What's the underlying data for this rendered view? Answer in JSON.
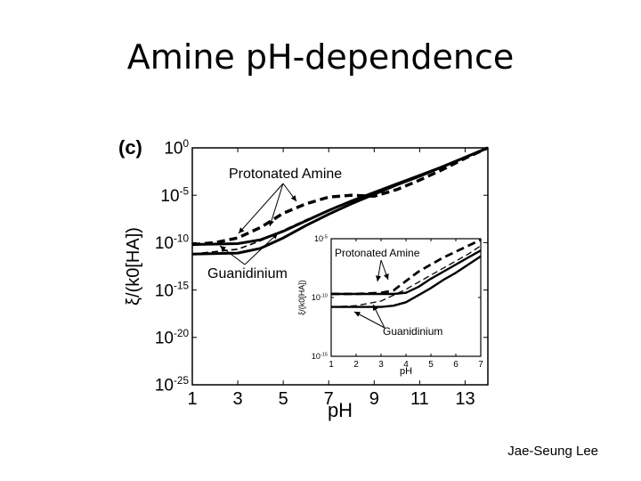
{
  "slide": {
    "title": "Amine pH-dependence",
    "author": "Jae-Seung Lee"
  },
  "chart_data": [
    {
      "panel": "(c)",
      "type": "line",
      "xlabel": "pH",
      "ylabel": "ξ/(k0[HA])",
      "xlim": [
        1,
        14
      ],
      "ylim_log10": [
        -25,
        0
      ],
      "y_scale": "log",
      "xticks": [
        1,
        3,
        5,
        7,
        9,
        11,
        13
      ],
      "yticks": [
        "10^0",
        "10^-5",
        "10^-10",
        "10^-15",
        "10^-20",
        "10^-25"
      ],
      "grid": false,
      "annotations": [
        "Protonated Amine",
        "Guanidinium"
      ],
      "series": [
        {
          "style": "solid-thick",
          "x": [
            1,
            3,
            4,
            5,
            6,
            7,
            8,
            9,
            10,
            11,
            12,
            13,
            14
          ],
          "log10_y": [
            -10.2,
            -10.1,
            -9.7,
            -8.8,
            -7.7,
            -6.6,
            -5.6,
            -4.7,
            -3.8,
            -2.9,
            -2.0,
            -1.0,
            0.0
          ]
        },
        {
          "style": "dashed-thick",
          "x": [
            1,
            2,
            3,
            4,
            5,
            6,
            7,
            8,
            9,
            10,
            11,
            12,
            13,
            14
          ],
          "log10_y": [
            -10.2,
            -10.0,
            -9.5,
            -8.4,
            -6.9,
            -5.9,
            -5.2,
            -5.0,
            -5.1,
            -4.4,
            -3.4,
            -2.3,
            -1.1,
            0.0
          ]
        },
        {
          "style": "solid-thick",
          "x": [
            1,
            3,
            4,
            5,
            6,
            7,
            8,
            9,
            10,
            11,
            12,
            13,
            14
          ],
          "log10_y": [
            -11.2,
            -11.1,
            -10.6,
            -9.5,
            -8.2,
            -7.0,
            -5.9,
            -4.9,
            -3.9,
            -3.0,
            -2.0,
            -1.0,
            0.0
          ]
        },
        {
          "style": "dashed-thin",
          "x": [
            1,
            3,
            4,
            5,
            6,
            7,
            8,
            9,
            10,
            11,
            12,
            13,
            14
          ],
          "log10_y": [
            -11.2,
            -10.7,
            -9.8,
            -8.7,
            -7.6,
            -6.6,
            -5.7,
            -4.8,
            -3.9,
            -3.0,
            -2.0,
            -1.0,
            0.0
          ]
        }
      ]
    },
    {
      "panel": "inset",
      "type": "line",
      "xlabel": "pH",
      "ylabel": "ξ/(k0[HA])",
      "xlim": [
        1,
        7
      ],
      "ylim_log10": [
        -15,
        -5
      ],
      "y_scale": "log",
      "xticks": [
        1,
        2,
        3,
        4,
        5,
        6,
        7
      ],
      "yticks": [
        "10^-5",
        "10^-10",
        "10^-15"
      ],
      "grid": false,
      "annotations": [
        "Protonated Amine",
        "Guanidinium"
      ],
      "series": [
        {
          "style": "solid-thick",
          "x": [
            1,
            2,
            3,
            3.5,
            4,
            4.5,
            5,
            5.5,
            6,
            6.5,
            7
          ],
          "log10_y": [
            -9.7,
            -9.7,
            -9.7,
            -9.7,
            -9.6,
            -9.1,
            -8.4,
            -7.8,
            -7.2,
            -6.6,
            -6.0
          ]
        },
        {
          "style": "dashed-thick",
          "x": [
            1,
            2,
            3,
            3.5,
            4,
            4.5,
            5,
            5.5,
            6,
            6.5,
            7
          ],
          "log10_y": [
            -9.7,
            -9.7,
            -9.6,
            -9.4,
            -8.6,
            -7.8,
            -7.2,
            -6.6,
            -6.1,
            -5.6,
            -5.1
          ]
        },
        {
          "style": "solid-thick",
          "x": [
            1,
            2,
            3,
            3.5,
            4,
            4.5,
            5,
            5.5,
            6,
            6.5,
            7
          ],
          "log10_y": [
            -10.8,
            -10.8,
            -10.8,
            -10.7,
            -10.4,
            -9.8,
            -9.2,
            -8.5,
            -7.9,
            -7.2,
            -6.5
          ]
        },
        {
          "style": "dashed-thin",
          "x": [
            1,
            2,
            3,
            3.5,
            4,
            4.5,
            5,
            5.5,
            6,
            6.5,
            7
          ],
          "log10_y": [
            -10.8,
            -10.7,
            -10.3,
            -9.8,
            -9.3,
            -8.7,
            -8.1,
            -7.5,
            -6.9,
            -6.3,
            -5.6
          ]
        }
      ]
    }
  ]
}
